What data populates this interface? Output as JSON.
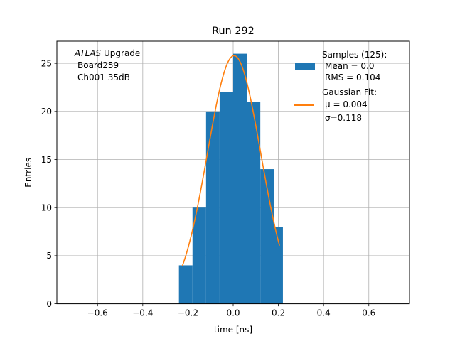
{
  "chart_data": {
    "type": "bar",
    "title": "Run 292",
    "xlabel": "time [ns]",
    "ylabel": "Entries",
    "xlim": [
      -0.78,
      0.78
    ],
    "ylim": [
      0,
      27.3
    ],
    "xticks": [
      -0.6,
      -0.4,
      -0.2,
      0.0,
      0.2,
      0.4,
      0.6
    ],
    "xtick_labels": [
      "−0.6",
      "−0.4",
      "−0.2",
      "0.0",
      "0.2",
      "0.4",
      "0.6"
    ],
    "yticks": [
      0,
      5,
      10,
      15,
      20,
      25
    ],
    "ytick_labels": [
      "0",
      "5",
      "10",
      "15",
      "20",
      "25"
    ],
    "grid": true,
    "annotation": {
      "atlas": "ATLAS",
      "upgrade": " Upgrade",
      "line2": "Board259",
      "line3": "Ch001 35dB"
    },
    "histogram": {
      "name": "Samples (125):",
      "color": "#1f77b4",
      "bin_edges": [
        -0.24,
        -0.18,
        -0.12,
        -0.06,
        0.0,
        0.06,
        0.12,
        0.18,
        0.22
      ],
      "counts": [
        4,
        10,
        20,
        22,
        26,
        21,
        14,
        8
      ]
    },
    "fit": {
      "name": "Gaussian Fit:",
      "color": "#ff7f0e",
      "mu": 0.004,
      "sigma": 0.118,
      "amplitude": 25.8,
      "x_range": [
        -0.225,
        0.205
      ]
    },
    "legend": {
      "position": "top-right",
      "hist_lines": [
        "Samples (125):",
        "Mean = 0.0",
        "RMS = 0.104"
      ],
      "fit_lines": [
        "Gaussian Fit:",
        "μ = 0.004",
        "σ=0.118"
      ]
    }
  }
}
